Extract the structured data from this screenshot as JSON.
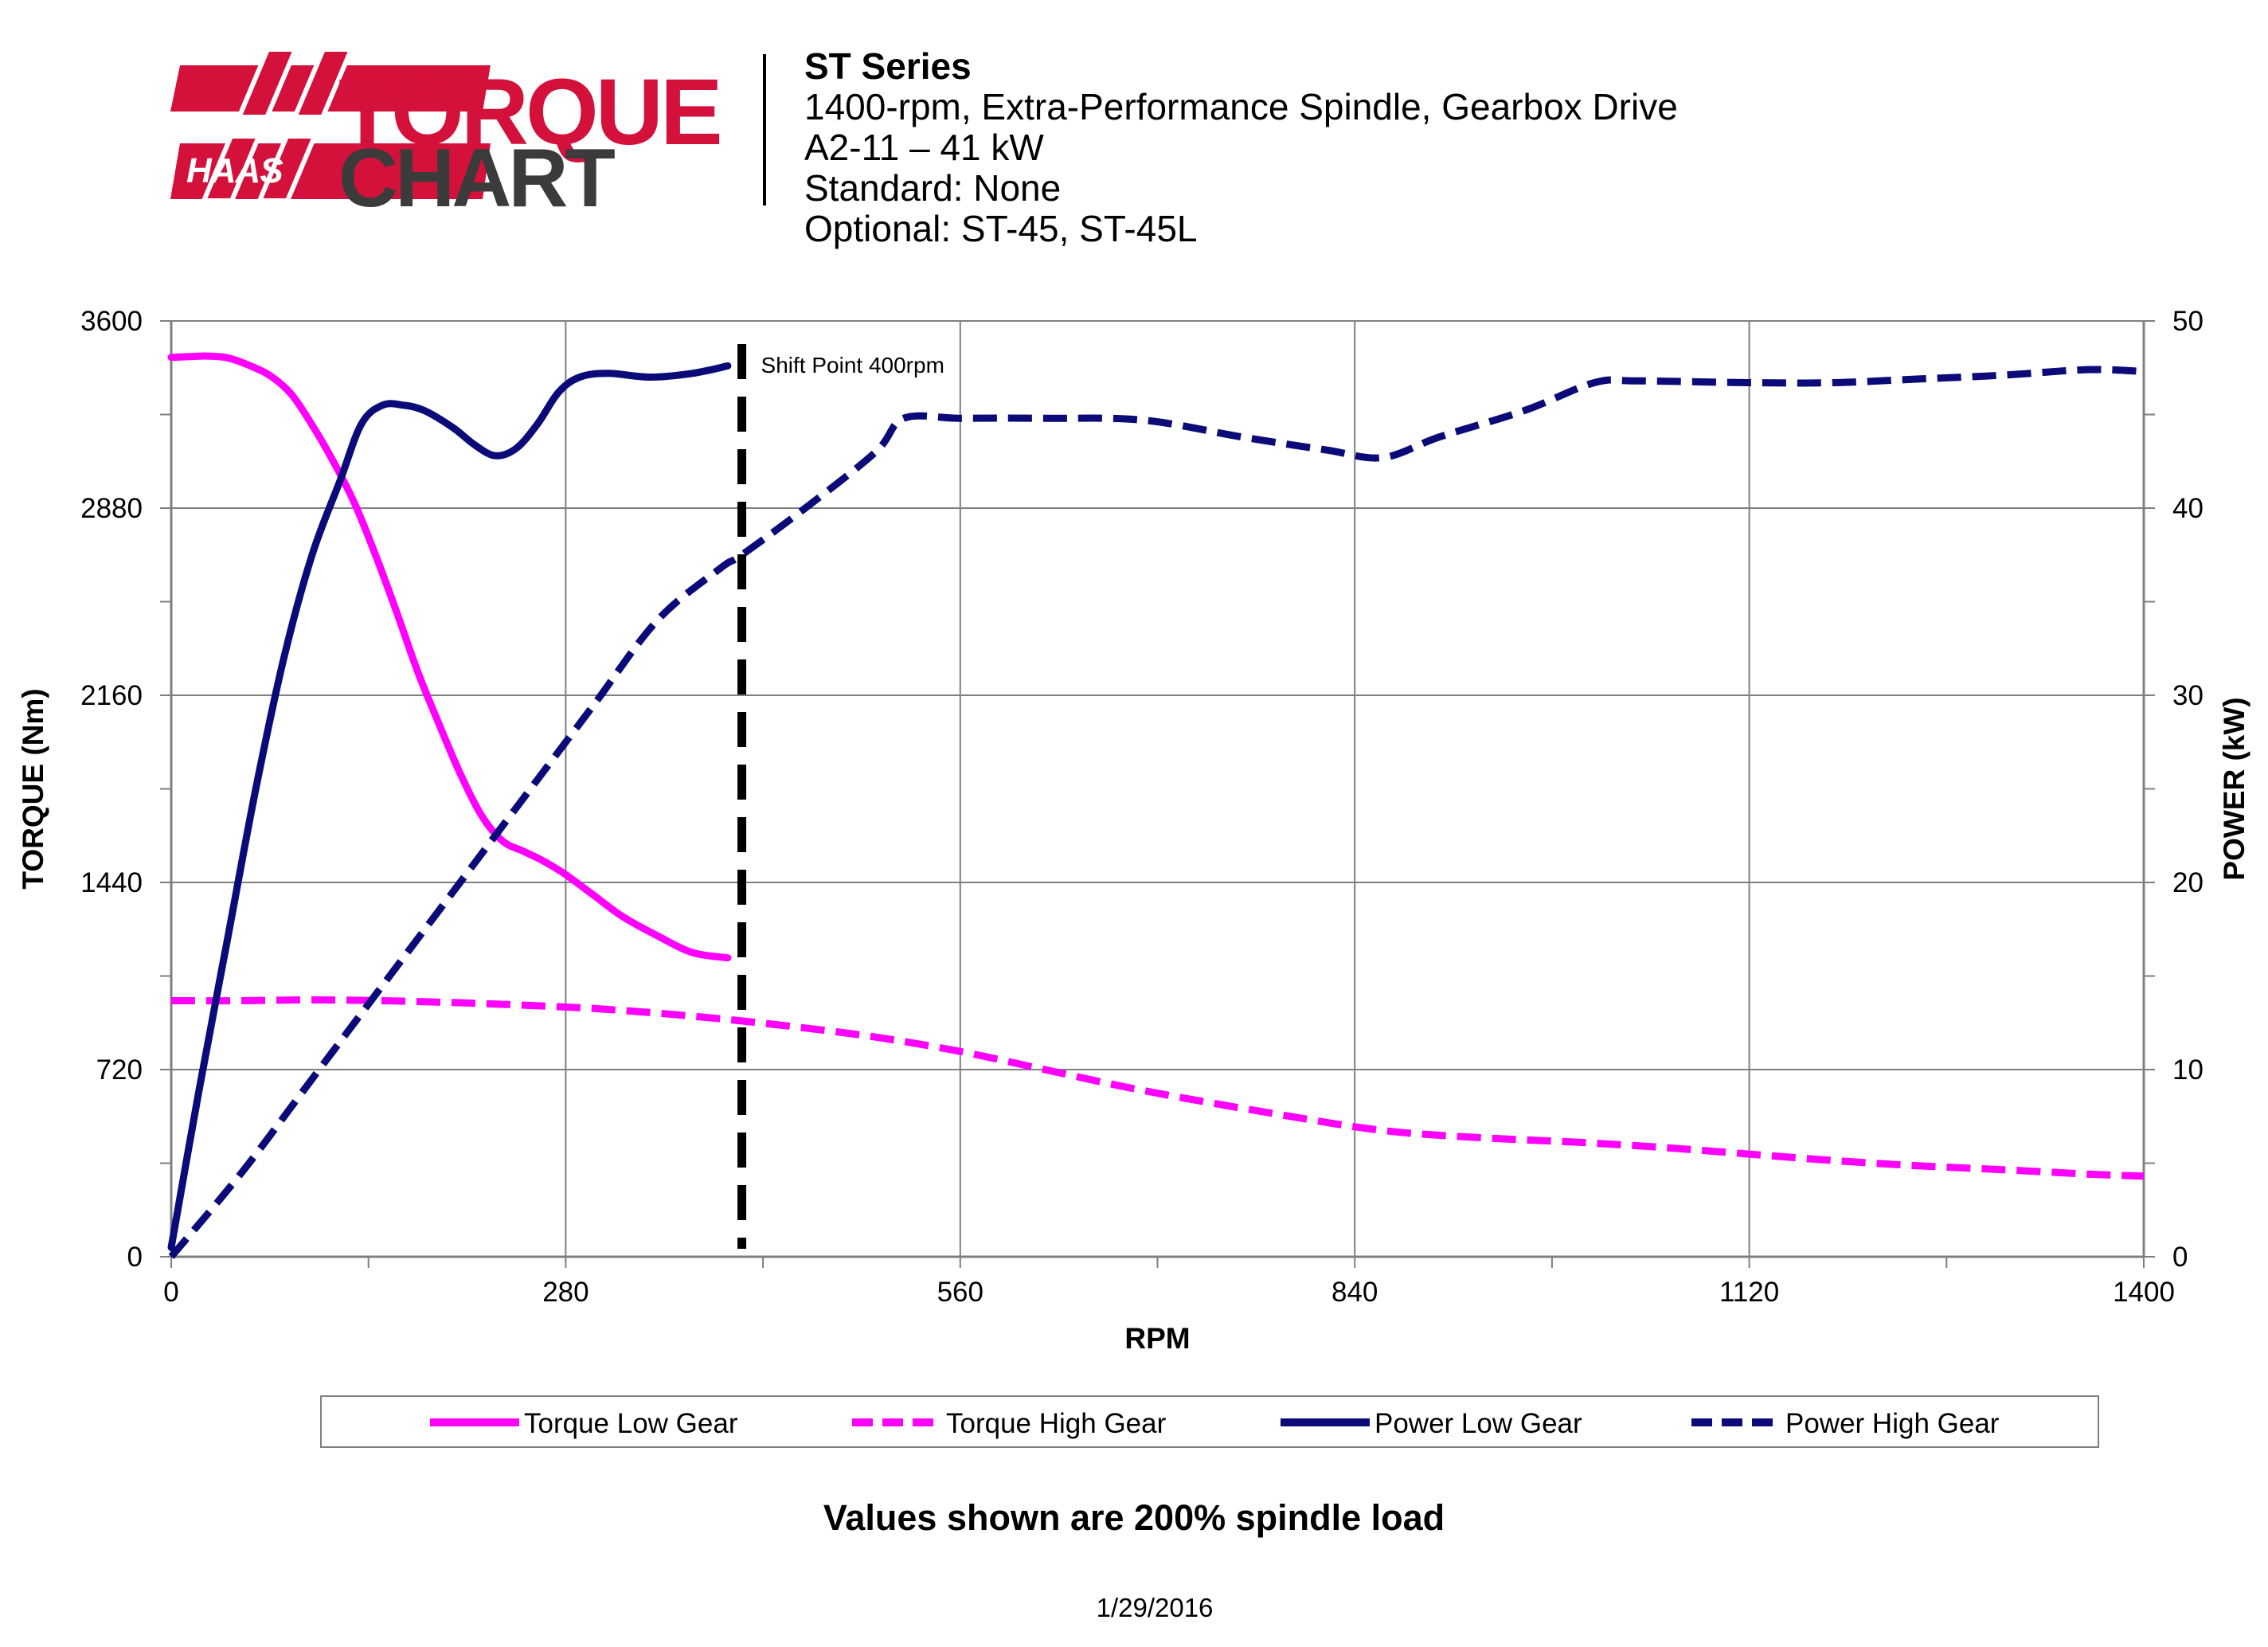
{
  "header": {
    "logo_text_top": "TORQUE",
    "logo_text_bottom": "CHART",
    "logo_brand": "HAAS",
    "series_title": "ST Series",
    "lines": [
      "1400-rpm, Extra-Performance Spindle, Gearbox Drive",
      "A2-11 – 41 kW",
      "Standard: None",
      "Optional: ST-45, ST-45L"
    ]
  },
  "chart_data": {
    "type": "line",
    "xlabel": "RPM",
    "ylabel_left": "TORQUE (Nm)",
    "ylabel_right": "POWER (kW)",
    "xlim": [
      0,
      1400
    ],
    "ylim_left": [
      0,
      3600
    ],
    "ylim_right": [
      0,
      50
    ],
    "x_ticks": [
      0,
      280,
      560,
      840,
      1120,
      1400
    ],
    "y_left_ticks": [
      0,
      720,
      1440,
      2160,
      2880,
      3600
    ],
    "y_right_ticks": [
      0,
      10,
      20,
      30,
      40,
      50
    ],
    "grid": true,
    "legend_position": "bottom",
    "annotation": {
      "text": "Shift Point 400rpm",
      "x": 405
    },
    "series": [
      {
        "name": "Torque Low Gear",
        "axis": "left",
        "style": "solid",
        "color": "#ff00ff",
        "points": [
          [
            0,
            3460
          ],
          [
            10,
            3462
          ],
          [
            25,
            3465
          ],
          [
            40,
            3458
          ],
          [
            55,
            3430
          ],
          [
            70,
            3390
          ],
          [
            85,
            3320
          ],
          [
            100,
            3200
          ],
          [
            115,
            3060
          ],
          [
            130,
            2900
          ],
          [
            145,
            2700
          ],
          [
            160,
            2480
          ],
          [
            175,
            2250
          ],
          [
            190,
            2050
          ],
          [
            205,
            1860
          ],
          [
            220,
            1700
          ],
          [
            235,
            1600
          ],
          [
            250,
            1560
          ],
          [
            265,
            1520
          ],
          [
            280,
            1470
          ],
          [
            300,
            1390
          ],
          [
            320,
            1310
          ],
          [
            345,
            1235
          ],
          [
            370,
            1170
          ],
          [
            395,
            1150
          ]
        ]
      },
      {
        "name": "Torque High Gear",
        "axis": "left",
        "style": "dashed",
        "color": "#ff00ff",
        "points": [
          [
            0,
            985
          ],
          [
            50,
            985
          ],
          [
            100,
            988
          ],
          [
            150,
            985
          ],
          [
            200,
            978
          ],
          [
            250,
            968
          ],
          [
            300,
            955
          ],
          [
            350,
            935
          ],
          [
            400,
            910
          ],
          [
            450,
            880
          ],
          [
            500,
            845
          ],
          [
            560,
            790
          ],
          [
            620,
            720
          ],
          [
            680,
            650
          ],
          [
            740,
            590
          ],
          [
            800,
            535
          ],
          [
            840,
            500
          ],
          [
            880,
            475
          ],
          [
            940,
            455
          ],
          [
            1000,
            440
          ],
          [
            1060,
            420
          ],
          [
            1120,
            395
          ],
          [
            1180,
            370
          ],
          [
            1240,
            350
          ],
          [
            1300,
            335
          ],
          [
            1360,
            318
          ],
          [
            1400,
            310
          ]
        ]
      },
      {
        "name": "Power Low Gear",
        "axis": "right",
        "style": "solid",
        "color": "#0a0a78",
        "points": [
          [
            0,
            0.5
          ],
          [
            20,
            9
          ],
          [
            40,
            17
          ],
          [
            60,
            25
          ],
          [
            80,
            32
          ],
          [
            100,
            37.5
          ],
          [
            120,
            41.5
          ],
          [
            135,
            44.5
          ],
          [
            150,
            45.5
          ],
          [
            165,
            45.5
          ],
          [
            180,
            45.2
          ],
          [
            200,
            44.3
          ],
          [
            215,
            43.4
          ],
          [
            230,
            42.8
          ],
          [
            245,
            43.2
          ],
          [
            260,
            44.5
          ],
          [
            275,
            46.2
          ],
          [
            290,
            47.0
          ],
          [
            310,
            47.2
          ],
          [
            340,
            47.0
          ],
          [
            370,
            47.2
          ],
          [
            395,
            47.6
          ]
        ]
      },
      {
        "name": "Power High Gear",
        "axis": "right",
        "style": "dashed",
        "color": "#0a0a78",
        "points": [
          [
            0,
            0
          ],
          [
            50,
            4.5
          ],
          [
            100,
            9.5
          ],
          [
            150,
            14.5
          ],
          [
            200,
            19.5
          ],
          [
            250,
            24.5
          ],
          [
            300,
            29.5
          ],
          [
            345,
            34
          ],
          [
            390,
            36.8
          ],
          [
            405,
            37.5
          ],
          [
            450,
            40.0
          ],
          [
            500,
            43.0
          ],
          [
            520,
            44.8
          ],
          [
            560,
            44.8
          ],
          [
            620,
            44.8
          ],
          [
            690,
            44.7
          ],
          [
            760,
            43.8
          ],
          [
            820,
            43.1
          ],
          [
            860,
            42.7
          ],
          [
            900,
            43.8
          ],
          [
            960,
            45.2
          ],
          [
            1010,
            46.7
          ],
          [
            1040,
            46.8
          ],
          [
            1120,
            46.7
          ],
          [
            1180,
            46.7
          ],
          [
            1240,
            46.9
          ],
          [
            1300,
            47.1
          ],
          [
            1360,
            47.4
          ],
          [
            1400,
            47.3
          ]
        ]
      }
    ],
    "footnote": "Values shown are 200% spindle load",
    "date": "1/29/2016"
  }
}
